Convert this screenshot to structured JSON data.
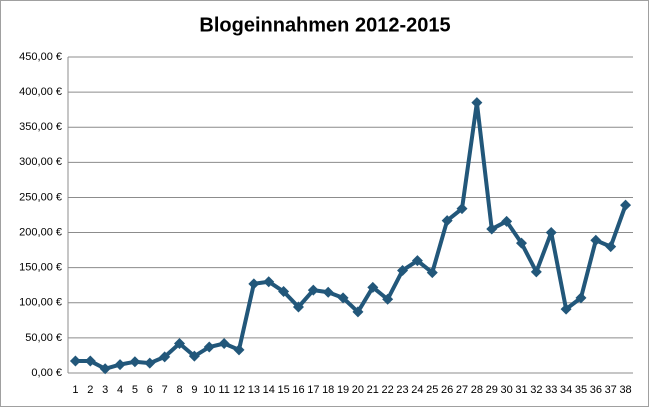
{
  "chart_data": {
    "type": "line",
    "title": "Blogeinnahmen 2012-2015",
    "categories": [
      "1",
      "2",
      "3",
      "4",
      "5",
      "6",
      "7",
      "8",
      "9",
      "10",
      "11",
      "12",
      "13",
      "14",
      "15",
      "16",
      "17",
      "18",
      "19",
      "20",
      "21",
      "22",
      "23",
      "24",
      "25",
      "26",
      "27",
      "28",
      "29",
      "30",
      "31",
      "32",
      "33",
      "34",
      "35",
      "36",
      "37",
      "38"
    ],
    "values": [
      17,
      17,
      6,
      12,
      16,
      14,
      23,
      42,
      24,
      37,
      42,
      33,
      127,
      130,
      116,
      94,
      118,
      115,
      107,
      87,
      122,
      105,
      146,
      160,
      143,
      217,
      234,
      385,
      205,
      216,
      185,
      144,
      200,
      91,
      107,
      189,
      180,
      239
    ],
    "color": "#22577a",
    "ylim": [
      0,
      450
    ],
    "yticks": [
      {
        "value": 0,
        "label": "0,00 €"
      },
      {
        "value": 50,
        "label": "50,00 €"
      },
      {
        "value": 100,
        "label": "100,00 €"
      },
      {
        "value": 150,
        "label": "150,00 €"
      },
      {
        "value": 200,
        "label": "200,00 €"
      },
      {
        "value": 250,
        "label": "250,00 €"
      },
      {
        "value": 300,
        "label": "300,00 €"
      },
      {
        "value": 350,
        "label": "350,00 €"
      },
      {
        "value": 400,
        "label": "400,00 €"
      },
      {
        "value": 450,
        "label": "450,00 €"
      }
    ],
    "grid": true
  }
}
